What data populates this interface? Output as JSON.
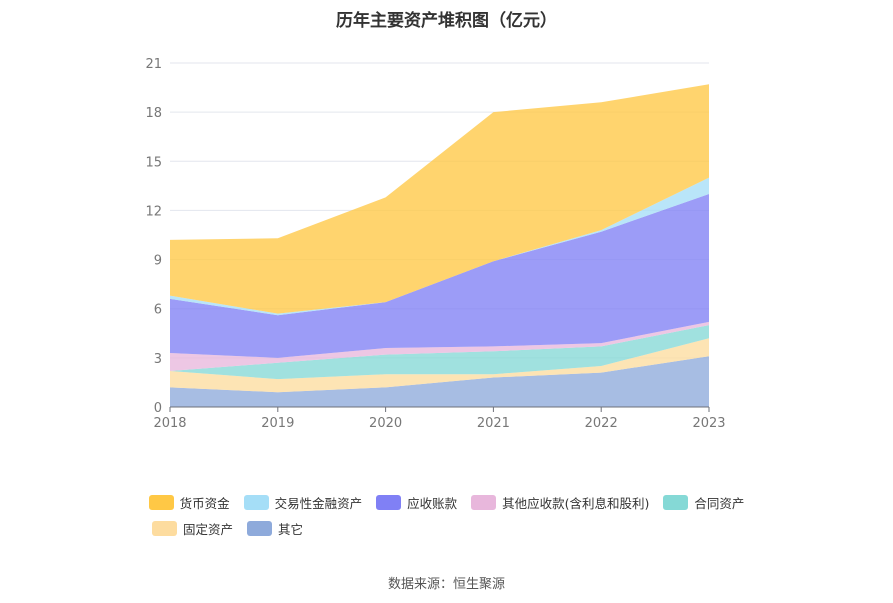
{
  "title": "历年主要资产堆积图（亿元）",
  "source": "数据来源：恒生聚源",
  "chart_data": {
    "type": "area",
    "stacked": true,
    "title": "历年主要资产堆积图（亿元）",
    "xlabel": "",
    "ylabel": "",
    "categories": [
      "2018",
      "2019",
      "2020",
      "2021",
      "2022",
      "2023"
    ],
    "yticks": [
      0,
      3,
      6,
      9,
      12,
      15,
      18,
      21
    ],
    "ylim": [
      0,
      21
    ],
    "grid": true,
    "legend_position": "bottom",
    "series": [
      {
        "name": "其它",
        "color": "#8eaadb",
        "values": [
          1.2,
          0.9,
          1.2,
          1.8,
          2.1,
          3.1
        ]
      },
      {
        "name": "固定资产",
        "color": "#fddc9f",
        "values": [
          1.0,
          0.8,
          0.8,
          0.2,
          0.4,
          1.1
        ]
      },
      {
        "name": "合同资产",
        "color": "#85d9d6",
        "values": [
          0.0,
          1.0,
          1.2,
          1.4,
          1.2,
          0.8
        ]
      },
      {
        "name": "其他应收款(含利息和股利)",
        "color": "#e8b7dc",
        "values": [
          1.1,
          0.3,
          0.4,
          0.3,
          0.2,
          0.2
        ]
      },
      {
        "name": "应收账款",
        "color": "#8080f5",
        "values": [
          3.3,
          2.6,
          2.8,
          5.2,
          6.8,
          7.8
        ]
      },
      {
        "name": "交易性金融资产",
        "color": "#a5def7",
        "values": [
          0.2,
          0.1,
          0.0,
          0.0,
          0.1,
          1.0
        ]
      },
      {
        "name": "货币资金",
        "color": "#ffc845",
        "values": [
          3.4,
          4.6,
          6.4,
          9.1,
          7.8,
          5.7
        ]
      }
    ]
  },
  "legend": {
    "row1": [
      {
        "label": "货币资金",
        "color": "#ffc845"
      },
      {
        "label": "交易性金融资产",
        "color": "#a5def7"
      },
      {
        "label": "应收账款",
        "color": "#8080f5"
      },
      {
        "label": "其他应收款(含利息和股利)",
        "color": "#e8b7dc"
      },
      {
        "label": "合同资产",
        "color": "#85d9d6"
      }
    ],
    "row2": [
      {
        "label": "固定资产",
        "color": "#fddc9f"
      },
      {
        "label": "其它",
        "color": "#8eaadb"
      }
    ]
  }
}
